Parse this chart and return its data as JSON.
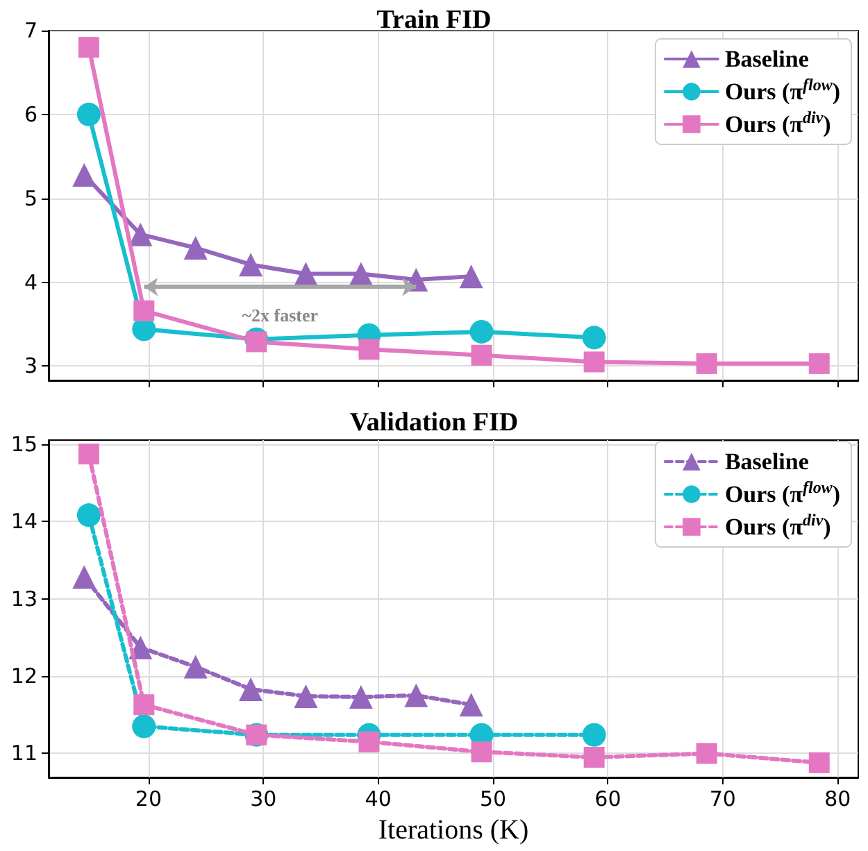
{
  "chart_data": [
    {
      "type": "line",
      "title": "Train FID",
      "xlim": [
        11.3,
        81.8
      ],
      "xticks": [
        20,
        30,
        40,
        50,
        60,
        70,
        80
      ],
      "ylim": [
        2.83,
        7.0
      ],
      "yticks": [
        3,
        4,
        5,
        6,
        7
      ],
      "tick_labels": "y",
      "grid": true,
      "legend": "top right",
      "line_style": "solid",
      "annotations": [
        "~2x faster"
      ],
      "series": [
        {
          "name": "Baseline",
          "color": "#9467bd",
          "marker": "triangle",
          "x": [
            14.4,
            19.3,
            24.1,
            28.9,
            33.7,
            38.5,
            43.3,
            48.1
          ],
          "values": [
            5.28,
            4.57,
            4.41,
            4.21,
            4.1,
            4.1,
            4.03,
            4.07
          ]
        },
        {
          "name": "Ours (π$^{flow}$)",
          "color": "#17becf",
          "marker": "circle",
          "x": [
            14.8,
            19.6,
            29.4,
            39.2,
            49.0,
            58.8
          ],
          "values": [
            6.0,
            3.44,
            3.32,
            3.37,
            3.41,
            3.34
          ]
        },
        {
          "name": "Ours (π$^{div}$)",
          "color": "#e377c2",
          "marker": "square",
          "x": [
            14.8,
            19.6,
            29.4,
            39.2,
            49.0,
            58.8,
            68.6,
            78.4
          ],
          "values": [
            6.8,
            3.66,
            3.29,
            3.2,
            3.13,
            3.05,
            3.03,
            3.03
          ]
        }
      ]
    },
    {
      "type": "line",
      "title": "Validation FID",
      "xlabel": "Iterations (K)",
      "xlim": [
        11.3,
        81.8
      ],
      "xticks": [
        20,
        30,
        40,
        50,
        60,
        70,
        80
      ],
      "ylim": [
        10.69,
        15.05
      ],
      "yticks": [
        11,
        12,
        13,
        14,
        15
      ],
      "grid": true,
      "legend": "top right",
      "line_style": "dashed",
      "series": [
        {
          "name": "Baseline",
          "color": "#9467bd",
          "marker": "triangle",
          "x": [
            14.4,
            19.3,
            24.1,
            28.9,
            33.7,
            38.5,
            43.3,
            48.1
          ],
          "values": [
            13.28,
            12.37,
            12.12,
            11.83,
            11.74,
            11.73,
            11.75,
            11.63
          ]
        },
        {
          "name": "Ours (π$^{flow}$)",
          "color": "#17becf",
          "marker": "circle",
          "x": [
            14.8,
            19.6,
            29.4,
            39.2,
            49.0,
            58.8
          ],
          "values": [
            14.08,
            11.35,
            11.24,
            11.24,
            11.24,
            11.24
          ]
        },
        {
          "name": "Ours (π$^{div}$)",
          "color": "#e377c2",
          "marker": "square",
          "x": [
            14.8,
            19.6,
            29.4,
            39.2,
            49.0,
            58.8,
            68.6,
            78.4
          ],
          "values": [
            14.87,
            11.63,
            11.24,
            11.15,
            11.02,
            10.95,
            11.0,
            10.88
          ]
        }
      ]
    }
  ]
}
